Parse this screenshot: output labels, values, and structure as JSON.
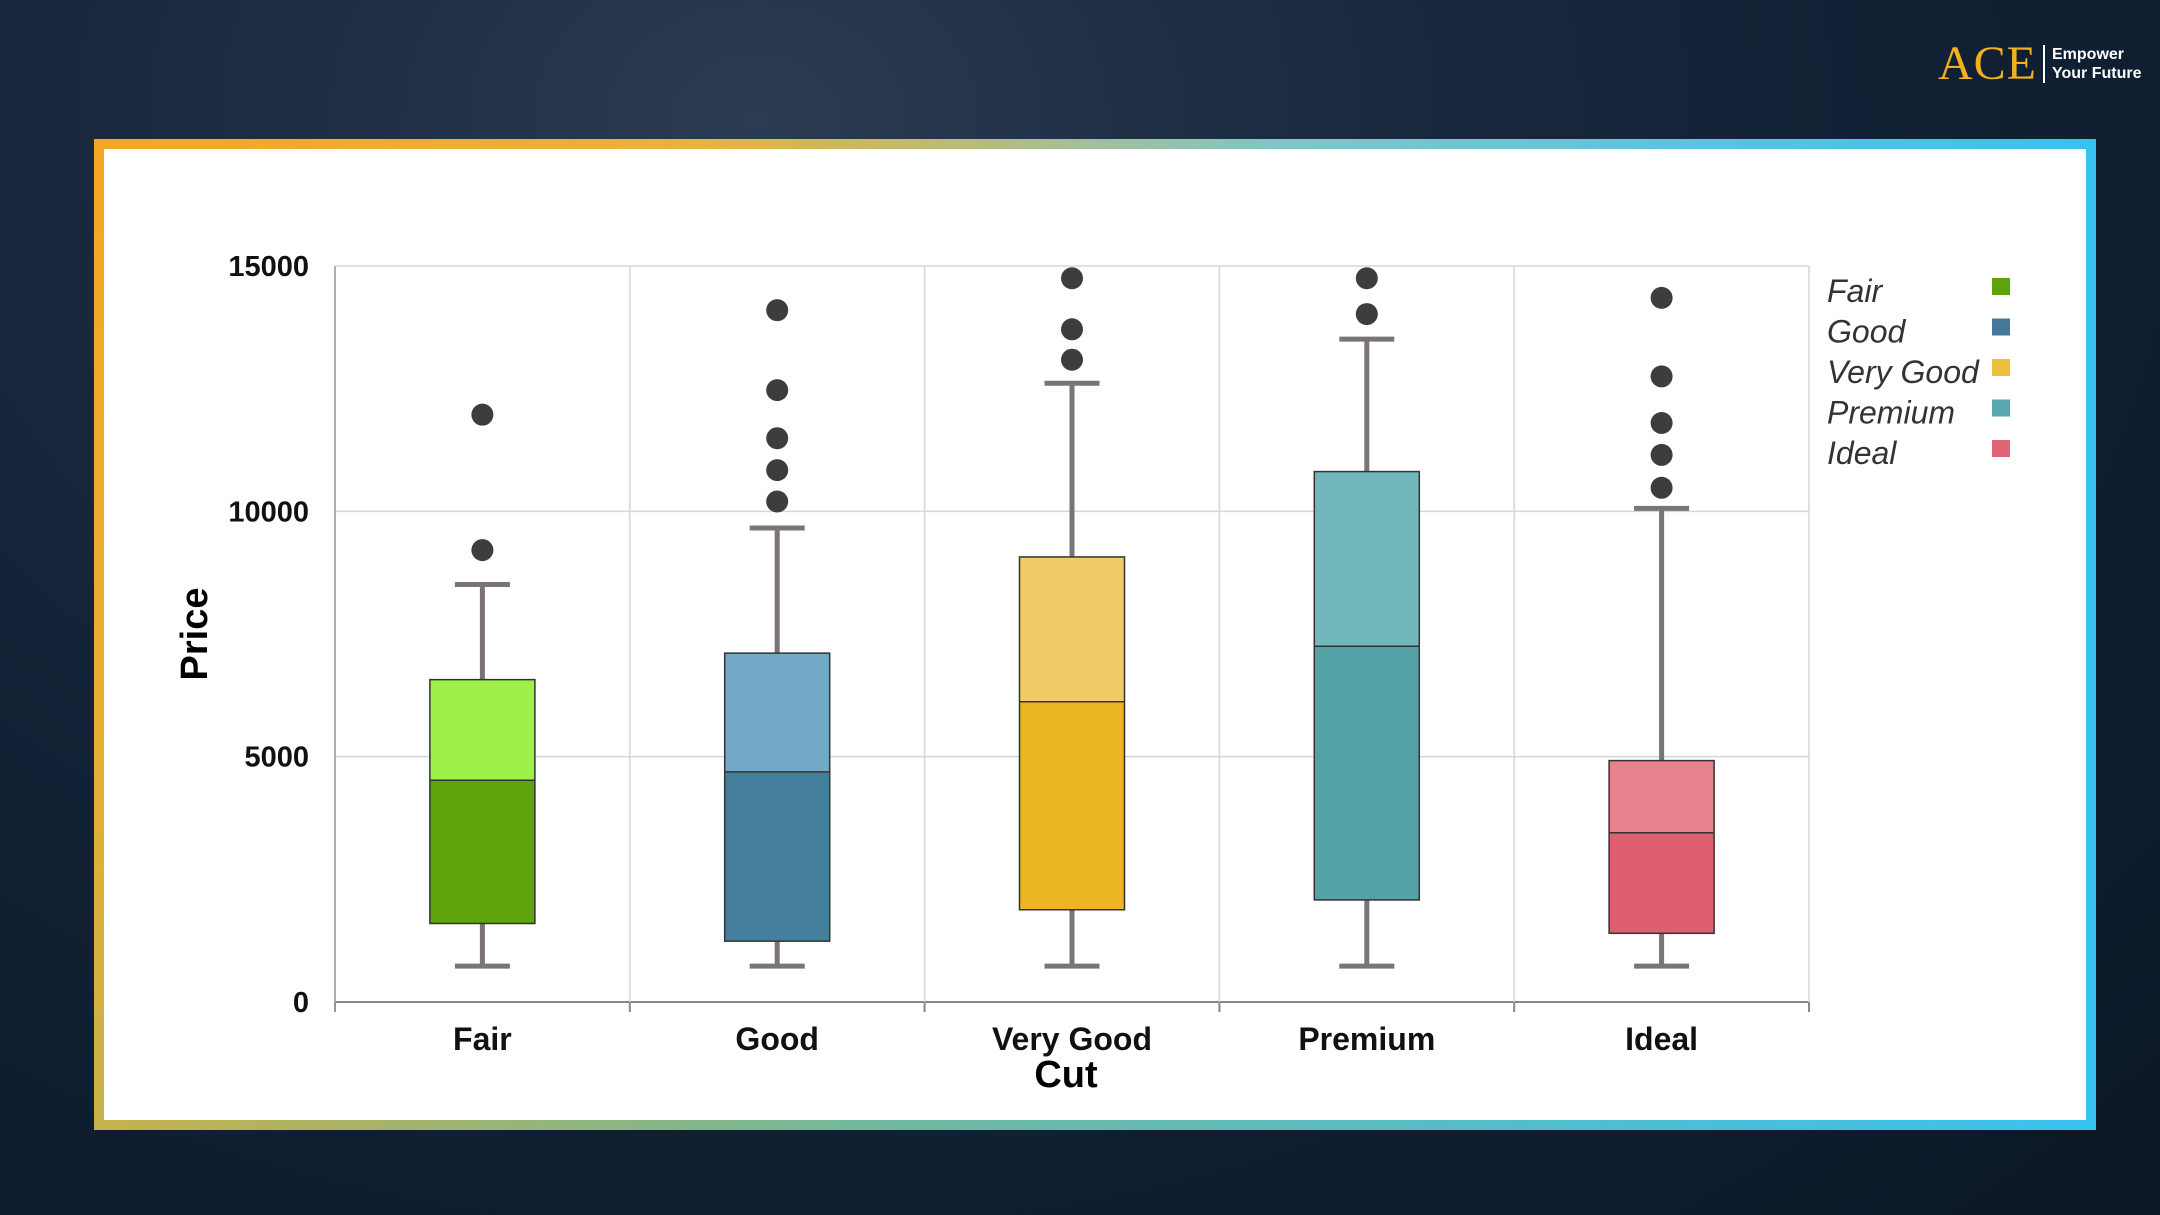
{
  "logo": {
    "brand": "ACE",
    "tagline_line1": "Empower",
    "tagline_line2": "Your Future"
  },
  "chart_data": {
    "type": "box",
    "title": "",
    "xlabel": "Cut",
    "ylabel": "Price",
    "ylim": [
      0,
      15000
    ],
    "yticks": [
      0,
      5000,
      10000,
      15000
    ],
    "grid": true,
    "legend_position": "right",
    "categories": [
      "Fair",
      "Good",
      "Very Good",
      "Premium",
      "Ideal"
    ],
    "boxes": [
      {
        "name": "Fair",
        "min": 730,
        "q1": 1600,
        "median": 4520,
        "q3": 6570,
        "max": 8510,
        "outliers": [
          9210,
          11970
        ],
        "color": "#5ea30a",
        "light": "#a0f04a"
      },
      {
        "name": "Good",
        "min": 730,
        "q1": 1240,
        "median": 4690,
        "q3": 7110,
        "max": 9660,
        "outliers": [
          10200,
          10840,
          11490,
          12470,
          14100
        ],
        "color": "#457f9e",
        "light": "#72a7c6"
      },
      {
        "name": "Very Good",
        "min": 730,
        "q1": 1880,
        "median": 6120,
        "q3": 9070,
        "max": 12610,
        "outliers": [
          13090,
          13710,
          14750
        ],
        "color": "#ebb523",
        "light": "#f1cb66"
      },
      {
        "name": "Premium",
        "min": 730,
        "q1": 2080,
        "median": 7250,
        "q3": 10810,
        "max": 13510,
        "outliers": [
          14020,
          14750
        ],
        "color": "#53a3a6",
        "light": "#72b7bb"
      },
      {
        "name": "Ideal",
        "min": 730,
        "q1": 1400,
        "median": 3450,
        "q3": 4920,
        "max": 10060,
        "outliers": [
          10480,
          11150,
          11800,
          12750,
          14350
        ],
        "color": "#de6070",
        "light": "#e7818b"
      }
    ],
    "legend": [
      {
        "label": "Fair",
        "color": "#5ea30a"
      },
      {
        "label": "Good",
        "color": "#45799c"
      },
      {
        "label": "Very Good",
        "color": "#ebbf3a"
      },
      {
        "label": "Premium",
        "color": "#58a8ad"
      },
      {
        "label": "Ideal",
        "color": "#de6476"
      }
    ]
  }
}
